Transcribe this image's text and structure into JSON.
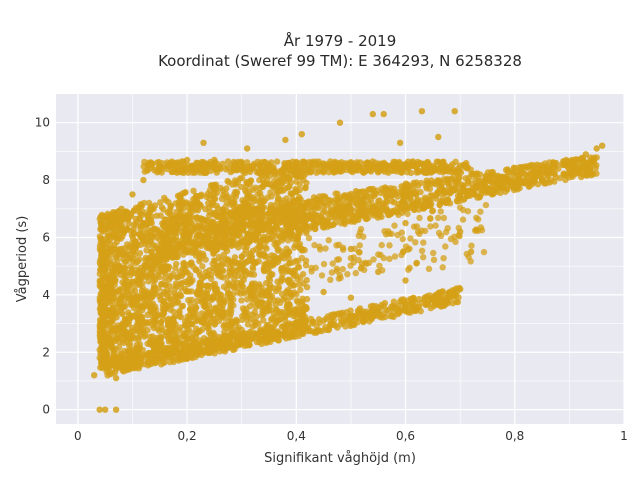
{
  "chart_data": {
    "type": "scatter",
    "title": "År 1979 - 2019",
    "subtitle": "Koordinat (Sweref 99 TM): E 364293, N 6258328",
    "xlabel": "Signifikant våghöjd (m)",
    "ylabel": "Vågperiod (s)",
    "xlim": [
      -0.04,
      1.0
    ],
    "ylim": [
      -0.5,
      11.0
    ],
    "xticks": [
      0,
      0.2,
      0.4,
      0.6,
      0.8,
      1
    ],
    "xtick_labels": [
      "0",
      "0,2",
      "0,4",
      "0,6",
      "0,8",
      "1"
    ],
    "yticks": [
      0,
      2,
      4,
      6,
      8,
      10
    ],
    "ytick_labels": [
      "0",
      "2",
      "4",
      "6",
      "8",
      "10"
    ],
    "grid": true,
    "legend": "none",
    "colors": {
      "points": "#D4A017",
      "plot_bg": "#E9E9F1",
      "grid": "#ffffff"
    },
    "series": [
      {
        "values": [
          [
            0.03,
            1.2
          ],
          [
            0.05,
            1.5
          ],
          [
            0.07,
            1.1
          ],
          [
            0.1,
            1.6
          ],
          [
            0.15,
            1.8
          ],
          [
            0.2,
            2.0
          ],
          [
            0.25,
            2.2
          ],
          [
            0.3,
            2.5
          ],
          [
            0.35,
            2.7
          ],
          [
            0.4,
            2.9
          ],
          [
            0.45,
            3.1
          ],
          [
            0.5,
            3.2
          ],
          [
            0.55,
            3.4
          ],
          [
            0.6,
            3.6
          ],
          [
            0.65,
            3.8
          ],
          [
            0.7,
            4.2
          ],
          [
            0.05,
            3.0
          ],
          [
            0.05,
            5.0
          ],
          [
            0.06,
            6.5
          ],
          [
            0.08,
            7.0
          ],
          [
            0.1,
            7.5
          ],
          [
            0.12,
            8.0
          ],
          [
            0.15,
            8.5
          ],
          [
            0.2,
            8.7
          ],
          [
            0.25,
            8.7
          ],
          [
            0.3,
            8.6
          ],
          [
            0.35,
            8.5
          ],
          [
            0.4,
            8.4
          ],
          [
            0.45,
            8.5
          ],
          [
            0.5,
            8.4
          ],
          [
            0.55,
            8.5
          ],
          [
            0.6,
            8.5
          ],
          [
            0.65,
            8.4
          ],
          [
            0.7,
            8.5
          ],
          [
            0.2,
            6.0
          ],
          [
            0.3,
            6.5
          ],
          [
            0.4,
            6.8
          ],
          [
            0.5,
            7.0
          ],
          [
            0.6,
            7.2
          ],
          [
            0.7,
            7.4
          ],
          [
            0.75,
            7.6
          ],
          [
            0.8,
            7.8
          ],
          [
            0.85,
            8.0
          ],
          [
            0.9,
            8.3
          ],
          [
            0.93,
            8.9
          ],
          [
            0.96,
            9.2
          ],
          [
            0.95,
            9.1
          ],
          [
            0.41,
            9.6
          ],
          [
            0.48,
            10.0
          ],
          [
            0.54,
            10.3
          ],
          [
            0.56,
            10.3
          ],
          [
            0.63,
            10.4
          ],
          [
            0.69,
            10.4
          ],
          [
            0.59,
            9.3
          ],
          [
            0.66,
            9.5
          ],
          [
            0.38,
            9.4
          ],
          [
            0.23,
            9.3
          ],
          [
            0.31,
            9.1
          ],
          [
            0.3,
            5.0
          ],
          [
            0.35,
            4.6
          ],
          [
            0.45,
            4.1
          ],
          [
            0.5,
            3.9
          ],
          [
            0.55,
            4.8
          ],
          [
            0.6,
            4.5
          ],
          [
            0.62,
            5.1
          ],
          [
            0.7,
            6.2
          ],
          [
            0.72,
            5.5
          ],
          [
            0.6,
            6.5
          ],
          [
            0.5,
            5.6
          ],
          [
            0.04,
            0.0
          ],
          [
            0.05,
            0.0
          ],
          [
            0.07,
            0.0
          ]
        ]
      }
    ]
  }
}
